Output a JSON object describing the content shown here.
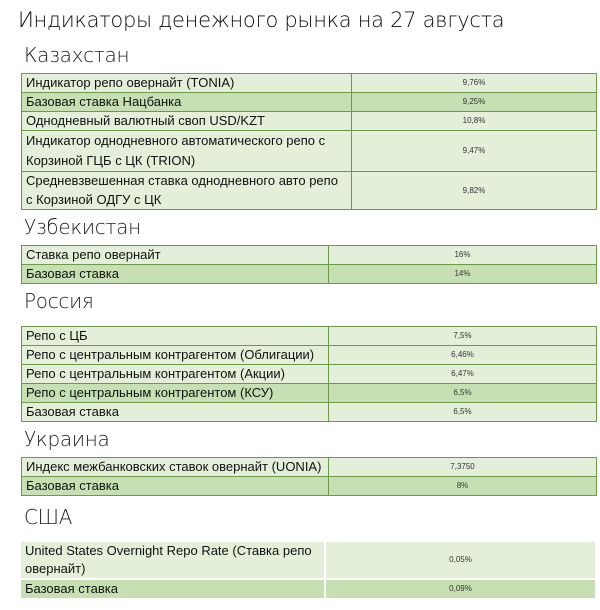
{
  "title": "Индикаторы денежного рынка на 27 августа",
  "sections": [
    {
      "heading": "Казахстан",
      "rows": [
        {
          "label": "Индикатор репо овернайт (TONIA)",
          "value": "9,76%"
        },
        {
          "label": "Базовая ставка Нацбанка",
          "value": "9,25%"
        },
        {
          "label": "Однодневный валютный своп USD/KZT",
          "value": "10,8%"
        },
        {
          "label": "Индикатор однодневного автоматического репо с Корзиной ГЦБ с ЦК (TRION)",
          "value": "9,47%"
        },
        {
          "label": "Средневзвешенная ставка однодневного авто репо с Корзиной ОДГУ с ЦК",
          "value": "9,82%"
        }
      ]
    },
    {
      "heading": "Узбекистан",
      "rows": [
        {
          "label": "Ставка репо овернайт",
          "value": "16%"
        },
        {
          "label": "Базовая ставка",
          "value": "14%"
        }
      ]
    },
    {
      "heading": "Россия",
      "rows": [
        {
          "label": "Репо с ЦБ",
          "value": "7,5%"
        },
        {
          "label": "Репо с центральным контрагентом (Облигации)",
          "value": "6,46%"
        },
        {
          "label": "Репо с центральным контрагентом (Акции)",
          "value": "6,47%"
        },
        {
          "label": "Репо с центральным контрагентом (КСУ)",
          "value": "6,5%"
        },
        {
          "label": "Базовая ставка",
          "value": "6,5%"
        }
      ]
    },
    {
      "heading": "Украина",
      "rows": [
        {
          "label": "Индекс межбанковских ставок овернайт (UONIA)",
          "value": "7,3750"
        },
        {
          "label": "Базовая ставка",
          "value": "8%"
        }
      ]
    },
    {
      "heading": "США",
      "rows": [
        {
          "label": "United States Overnight Repo Rate (Ставка репо овернайт)",
          "value": "0,05%"
        },
        {
          "label": "Базовая ставка",
          "value": "0,09%"
        }
      ]
    }
  ],
  "colors": {
    "row_light": "#e3efd9",
    "row_dark": "#c6e0b4",
    "border": "#6a9a4a"
  }
}
